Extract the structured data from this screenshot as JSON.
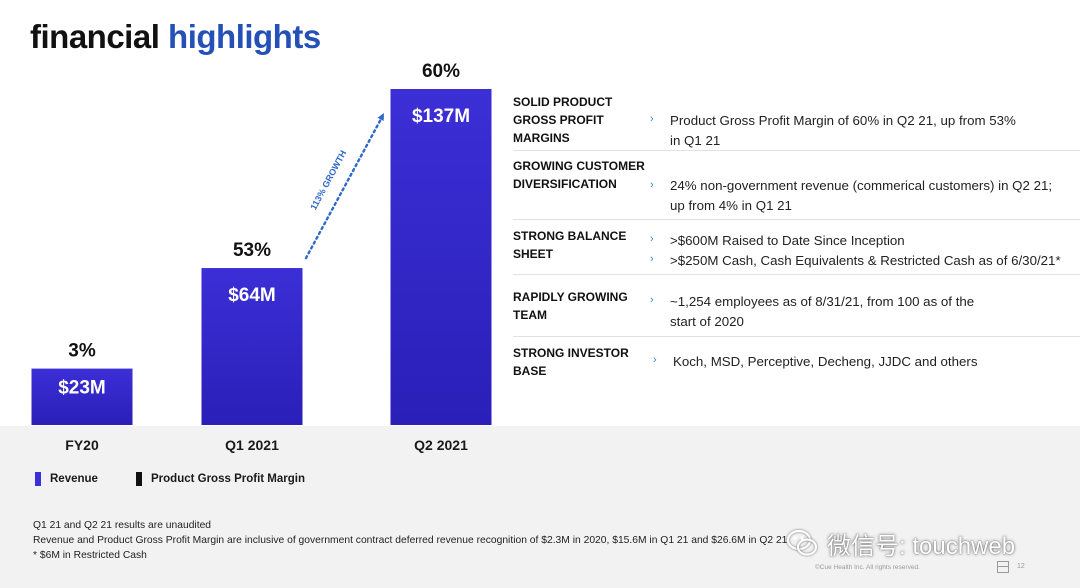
{
  "title": {
    "word1": "financial",
    "word2": "highlights"
  },
  "chart_data": {
    "type": "bar",
    "categories": [
      "FY20",
      "Q1 2021",
      "Q2 2021"
    ],
    "series": [
      {
        "name": "Revenue",
        "unit": "$M",
        "values": [
          23,
          64,
          137
        ],
        "labels": [
          "$23M",
          "$64M",
          "$137M"
        ]
      },
      {
        "name": "Product Gross Profit Margin",
        "unit": "%",
        "values": [
          3,
          53,
          60
        ],
        "labels": [
          "3%",
          "53%",
          "60%"
        ]
      }
    ],
    "annotation": "113% GROWTH",
    "ylim": [
      0,
      137
    ],
    "colors": {
      "revenue": "#3b2fd6",
      "revenue_dark": "#2a1fb8",
      "margin": "#111111",
      "arrow": "#2f69c9"
    }
  },
  "legend": {
    "revenue": "Revenue",
    "margin": "Product Gross Profit Margin"
  },
  "highlights": [
    {
      "category": "SOLID PRODUCT GROSS PROFIT MARGINS",
      "lines": [
        "Product Gross Profit Margin of 60% in Q2 21, up from 53%",
        "in Q1 21"
      ]
    },
    {
      "category": "GROWING CUSTOMER DIVERSIFICATION",
      "lines": [
        "24% non-government revenue (commerical customers) in Q2 21;",
        "up from 4% in Q1 21"
      ]
    },
    {
      "category": "STRONG BALANCE SHEET",
      "lines": [
        ">$600M Raised to Date Since Inception",
        ">$250M Cash, Cash Equivalents & Restricted Cash as of 6/30/21*"
      ]
    },
    {
      "category": "RAPIDLY GROWING TEAM",
      "lines": [
        "~1,254 employees as of 8/31/21, from 100 as of the",
        "start of 2020"
      ]
    },
    {
      "category": "STRONG INVESTOR BASE",
      "lines": [
        "Koch, MSD, Perceptive, Decheng, JJDC and others"
      ]
    }
  ],
  "footnotes": [
    "Q1 21 and Q2 21 results are unaudited",
    "Revenue and Product Gross Profit Margin are inclusive of government contract deferred revenue recognition of $2.3M in 2020, $15.6M in Q1 21 and $26.6M in Q2 21",
    "* $6M in Restricted Cash"
  ],
  "footer": {
    "copyright": "©Cue Health Inc. All rights reserved.",
    "page_number": "12"
  },
  "watermark": {
    "text": "微信号: touchweb"
  }
}
